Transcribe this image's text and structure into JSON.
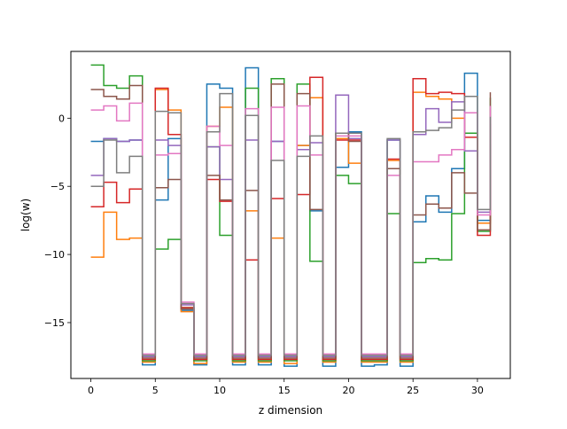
{
  "chart_data": {
    "type": "line",
    "step": "post",
    "title": "",
    "xlabel": "z dimension",
    "ylabel": "log(w)",
    "xlim": [
      -1.55,
      32.55
    ],
    "ylim": [
      -19.1,
      4.9
    ],
    "xticks": [
      0,
      5,
      10,
      15,
      20,
      25,
      30
    ],
    "yticks": [
      -15,
      -10,
      -5,
      0
    ],
    "ytick_labels": [
      "−15",
      "−10",
      "−5",
      "0"
    ],
    "grid": false,
    "legend": "none",
    "x": [
      0,
      1,
      2,
      3,
      4,
      5,
      6,
      7,
      8,
      9,
      10,
      11,
      12,
      13,
      14,
      15,
      16,
      17,
      18,
      19,
      20,
      21,
      22,
      23,
      24,
      25,
      26,
      27,
      28,
      29,
      30,
      31
    ],
    "series": [
      {
        "color": "#1f77b4",
        "values": [
          -1.7,
          -1.5,
          -1.7,
          -1.6,
          -18.1,
          -6.0,
          -1.5,
          -14.1,
          -18.1,
          2.5,
          2.2,
          -18.1,
          3.7,
          -18.1,
          -1.7,
          -18.2,
          -2.0,
          -6.8,
          -18.2,
          -3.6,
          -1.0,
          -18.2,
          -18.1,
          -1.6,
          -18.2,
          -7.6,
          -5.7,
          -6.9,
          -3.7,
          3.3,
          -7.5,
          -1.9
        ]
      },
      {
        "color": "#ff7f0e",
        "values": [
          -10.2,
          -6.9,
          -8.9,
          -8.8,
          -17.9,
          2.1,
          0.6,
          -14.2,
          -18.0,
          -0.6,
          0.8,
          -17.9,
          -6.8,
          -17.9,
          -8.8,
          -18.0,
          -2.0,
          1.5,
          -17.9,
          -1.5,
          -3.3,
          -17.9,
          -17.9,
          -3.1,
          -17.9,
          1.9,
          1.6,
          1.4,
          0.0,
          -1.1,
          -7.7,
          -3.1
        ]
      },
      {
        "color": "#2ca02c",
        "values": [
          3.9,
          2.4,
          2.2,
          3.1,
          -17.8,
          -9.6,
          -8.9,
          -13.9,
          -17.8,
          -2.1,
          -8.6,
          -17.8,
          2.2,
          -17.8,
          2.9,
          -17.8,
          2.5,
          -10.5,
          -17.8,
          -4.2,
          -4.8,
          -17.8,
          -17.8,
          -7.0,
          -17.8,
          -10.6,
          -10.3,
          -10.4,
          -7.0,
          -1.1,
          -8.3,
          1.5
        ]
      },
      {
        "color": "#d62728",
        "values": [
          -6.5,
          -4.7,
          -6.2,
          -5.2,
          -17.7,
          2.2,
          -1.2,
          -13.9,
          -17.7,
          -4.5,
          -6.1,
          -17.7,
          -10.4,
          -17.7,
          -5.9,
          -17.7,
          -5.6,
          3.0,
          -17.7,
          -1.6,
          -1.6,
          -17.7,
          -17.7,
          -3.0,
          -17.7,
          2.9,
          1.8,
          1.9,
          1.8,
          -1.4,
          -8.6,
          -0.4
        ]
      },
      {
        "color": "#9467bd",
        "values": [
          -4.2,
          -1.5,
          -1.7,
          -1.6,
          -17.5,
          -1.6,
          -2.0,
          -13.7,
          -17.5,
          -2.1,
          -4.5,
          -17.5,
          -1.6,
          -17.5,
          -1.7,
          -17.5,
          -2.3,
          -1.8,
          -17.5,
          1.7,
          -1.5,
          -17.5,
          -17.5,
          -1.6,
          -17.5,
          -1.2,
          0.7,
          -0.3,
          1.2,
          -2.4,
          -6.9,
          0.1
        ]
      },
      {
        "color": "#8c564b",
        "values": [
          2.1,
          1.6,
          1.4,
          2.4,
          -17.6,
          -5.1,
          -4.5,
          -14.0,
          -17.6,
          -4.2,
          -6.0,
          -17.6,
          -5.3,
          -17.6,
          2.5,
          -17.6,
          1.8,
          -6.7,
          -17.6,
          -1.1,
          -1.7,
          -17.6,
          -17.6,
          -3.7,
          -17.6,
          -7.1,
          -6.3,
          -6.6,
          -4.0,
          -5.5,
          -8.2,
          1.9
        ]
      },
      {
        "color": "#e377c2",
        "values": [
          0.6,
          0.9,
          -0.2,
          1.1,
          -17.3,
          -2.7,
          -2.6,
          -13.5,
          -17.3,
          -0.6,
          -2.0,
          -17.3,
          0.7,
          -17.3,
          0.8,
          -17.3,
          0.9,
          -2.7,
          -17.3,
          -1.3,
          -1.3,
          -17.3,
          -17.3,
          -4.2,
          -17.3,
          -3.2,
          -3.2,
          -2.7,
          -2.3,
          0.4,
          -7.1,
          0.9
        ]
      },
      {
        "color": "#7f7f7f",
        "values": [
          -5.0,
          -1.6,
          -4.0,
          -2.8,
          -17.4,
          0.5,
          0.4,
          -13.6,
          -17.4,
          -1.0,
          1.8,
          -17.4,
          0.2,
          -17.4,
          -3.1,
          -17.4,
          -2.8,
          -1.3,
          -17.4,
          -1.1,
          -1.1,
          -17.4,
          -17.4,
          -1.5,
          -17.4,
          -1.0,
          -0.9,
          -0.7,
          0.6,
          1.6,
          -6.7,
          0.1
        ]
      }
    ]
  }
}
